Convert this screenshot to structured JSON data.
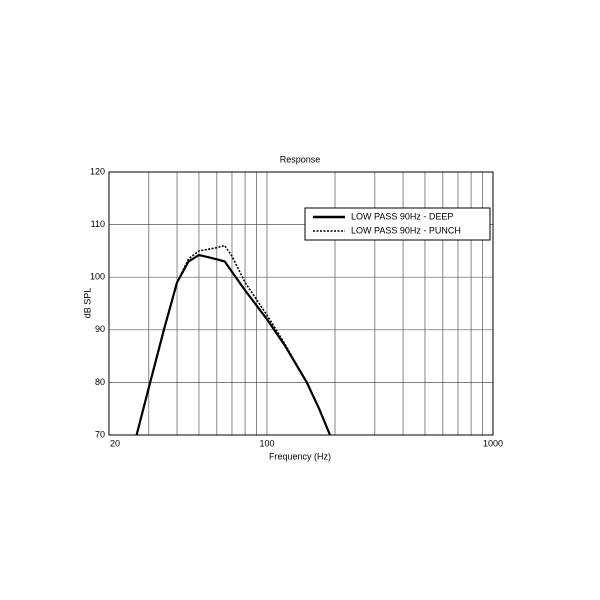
{
  "chart_data": {
    "type": "line",
    "title": "Response",
    "x_label": "Frequency (Hz)",
    "y_label": "dB SPL",
    "x": [
      26.5,
      30,
      35,
      40,
      45,
      50,
      55,
      60,
      65,
      70,
      80,
      100,
      120,
      150,
      170,
      190
    ],
    "series": [
      {
        "name": "LOW PASS 90Hz - DEEP",
        "color": "#000000",
        "style": "solid",
        "values": [
          70,
          79,
          90,
          99,
          103,
          104.2,
          103.8,
          103.4,
          103,
          101,
          97.5,
          92,
          87,
          80,
          75,
          70
        ]
      },
      {
        "name": "LOW PASS 90Hz - PUNCH",
        "color": "#000000",
        "style": "dotted",
        "values": [
          70,
          79,
          90,
          99,
          103.5,
          105,
          105.3,
          105.6,
          106,
          104,
          99,
          92.8,
          87.3,
          80,
          75,
          70
        ]
      }
    ],
    "x_log": true,
    "xlim": [
      20,
      1000
    ],
    "xticks": [
      20,
      100,
      1000
    ],
    "xminor": [
      30,
      40,
      50,
      60,
      70,
      80,
      90,
      200,
      300,
      400,
      500,
      600,
      700,
      800,
      900
    ],
    "ylim": [
      70,
      120
    ],
    "yticks": [
      70,
      80,
      90,
      100,
      110,
      120
    ],
    "grid": true,
    "legend": "upper right"
  }
}
